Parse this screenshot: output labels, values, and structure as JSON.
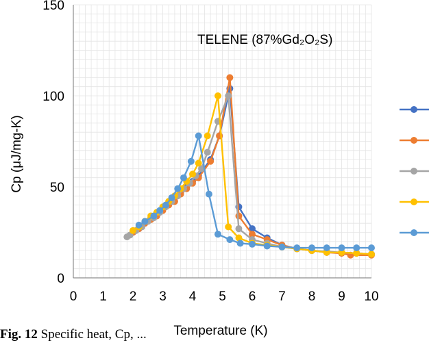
{
  "colors": {
    "gridline": "#e4e4e4",
    "axis": "#8c8c8c"
  },
  "chart_data": {
    "type": "line",
    "title": "",
    "annotation": "TELENE (87%Gd₂O₂S)",
    "xlabel": "Temperature (K)",
    "ylabel": "Cp (μJ/mg-K)",
    "xlim": [
      0,
      10
    ],
    "ylim": [
      0,
      150
    ],
    "xticks": [
      0,
      1,
      2,
      3,
      4,
      5,
      6,
      7,
      8,
      9,
      10
    ],
    "yticks": [
      0,
      50,
      100,
      150
    ],
    "grid": true,
    "legend": "right",
    "series": [
      {
        "color": "#4472c4",
        "points": [
          [
            2.0,
            25
          ],
          [
            2.2,
            27
          ],
          [
            2.4,
            30
          ],
          [
            2.6,
            33
          ],
          [
            2.8,
            35
          ],
          [
            3.0,
            38
          ],
          [
            3.2,
            41
          ],
          [
            3.4,
            44
          ],
          [
            3.6,
            47
          ],
          [
            3.8,
            50
          ],
          [
            4.0,
            53
          ],
          [
            4.2,
            56
          ],
          [
            4.6,
            65
          ],
          [
            4.9,
            78
          ],
          [
            5.25,
            104
          ],
          [
            5.55,
            39
          ],
          [
            6.0,
            27
          ],
          [
            6.5,
            22
          ],
          [
            7.0,
            18
          ],
          [
            7.5,
            16
          ],
          [
            8.0,
            15
          ],
          [
            8.5,
            14
          ],
          [
            9.0,
            14
          ],
          [
            9.5,
            13.5
          ],
          [
            10,
            13
          ]
        ]
      },
      {
        "color": "#ed7d31",
        "points": [
          [
            2.0,
            25
          ],
          [
            2.2,
            27
          ],
          [
            2.4,
            30
          ],
          [
            2.6,
            32
          ],
          [
            2.8,
            34
          ],
          [
            3.0,
            37
          ],
          [
            3.2,
            40
          ],
          [
            3.4,
            42
          ],
          [
            3.6,
            46
          ],
          [
            3.8,
            49
          ],
          [
            4.0,
            52
          ],
          [
            4.2,
            55
          ],
          [
            4.6,
            64
          ],
          [
            4.9,
            78
          ],
          [
            5.25,
            110
          ],
          [
            5.55,
            34
          ],
          [
            6.0,
            24
          ],
          [
            6.5,
            21
          ],
          [
            7.0,
            18
          ],
          [
            7.5,
            16
          ],
          [
            8.0,
            15
          ],
          [
            8.5,
            14
          ],
          [
            9.0,
            13.5
          ],
          [
            9.3,
            12.5
          ],
          [
            10,
            12.5
          ]
        ]
      },
      {
        "color": "#a5a5a5",
        "points": [
          [
            1.8,
            22.5
          ],
          [
            1.9,
            23.5
          ],
          [
            2.1,
            26
          ],
          [
            2.3,
            28
          ],
          [
            2.5,
            31
          ],
          [
            2.7,
            33
          ],
          [
            2.9,
            36
          ],
          [
            3.1,
            39
          ],
          [
            3.3,
            42
          ],
          [
            3.5,
            45
          ],
          [
            3.7,
            49
          ],
          [
            3.9,
            52
          ],
          [
            4.1,
            56
          ],
          [
            4.3,
            60
          ],
          [
            4.5,
            69
          ],
          [
            4.85,
            86
          ],
          [
            5.2,
            100
          ],
          [
            5.55,
            27
          ],
          [
            6.0,
            21
          ],
          [
            6.5,
            19
          ],
          [
            7.0,
            17
          ],
          [
            7.5,
            16
          ],
          [
            8.0,
            15
          ],
          [
            8.5,
            14.5
          ],
          [
            9.0,
            14
          ],
          [
            9.5,
            13.5
          ],
          [
            10,
            13
          ]
        ]
      },
      {
        "color": "#ffc000",
        "points": [
          [
            2.0,
            26
          ],
          [
            2.2,
            28
          ],
          [
            2.4,
            31
          ],
          [
            2.6,
            34
          ],
          [
            2.8,
            36
          ],
          [
            3.0,
            39
          ],
          [
            3.2,
            42
          ],
          [
            3.4,
            45
          ],
          [
            3.6,
            49
          ],
          [
            3.8,
            53
          ],
          [
            4.0,
            57
          ],
          [
            4.2,
            63
          ],
          [
            4.5,
            78
          ],
          [
            4.85,
            100
          ],
          [
            5.2,
            28
          ],
          [
            5.55,
            22
          ],
          [
            6.0,
            19
          ],
          [
            6.5,
            18
          ],
          [
            7.0,
            17
          ],
          [
            7.5,
            16
          ],
          [
            8.0,
            15
          ],
          [
            8.5,
            14
          ],
          [
            9.0,
            14
          ],
          [
            9.5,
            13.5
          ],
          [
            10,
            13
          ]
        ]
      },
      {
        "color": "#5b9bd5",
        "points": [
          [
            2.2,
            29
          ],
          [
            2.4,
            31
          ],
          [
            2.7,
            34
          ],
          [
            2.9,
            37
          ],
          [
            3.1,
            40
          ],
          [
            3.3,
            44
          ],
          [
            3.5,
            49
          ],
          [
            3.7,
            55
          ],
          [
            3.95,
            64
          ],
          [
            4.2,
            78
          ],
          [
            4.55,
            46
          ],
          [
            4.85,
            24
          ],
          [
            5.25,
            21
          ],
          [
            5.6,
            19
          ],
          [
            6.0,
            18.5
          ],
          [
            6.5,
            17.5
          ],
          [
            7.0,
            17
          ],
          [
            7.5,
            16.5
          ],
          [
            8.0,
            16.5
          ],
          [
            8.5,
            16.5
          ],
          [
            9.0,
            16.5
          ],
          [
            9.5,
            16.5
          ],
          [
            10,
            16.5
          ]
        ]
      }
    ]
  },
  "caption": {
    "label": "Fig. 12",
    "text": " Specific heat, Cp, ..."
  }
}
